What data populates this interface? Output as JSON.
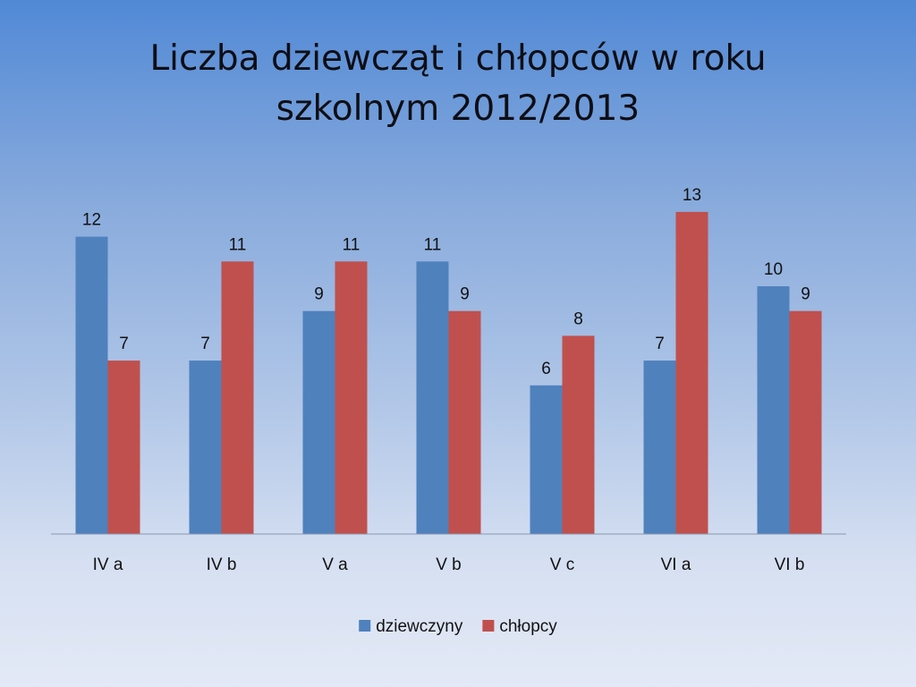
{
  "chart_data": {
    "type": "bar",
    "title_lines": [
      "Liczba dziewcząt i chłopców w roku",
      "szkolnym 2012/2013"
    ],
    "categories": [
      "IV a",
      "IV b",
      "V a",
      "V b",
      "V c",
      "VI a",
      "VI b"
    ],
    "series": [
      {
        "name": "dziewczyny",
        "color": "#4f81bd",
        "values": [
          12,
          7,
          9,
          11,
          6,
          7,
          10
        ]
      },
      {
        "name": "chłopcy",
        "color": "#c0504d",
        "values": [
          7,
          11,
          11,
          9,
          8,
          13,
          9
        ]
      }
    ],
    "ylim": [
      0,
      13
    ],
    "grid": false,
    "legend_position": "bottom",
    "data_labels": true
  }
}
